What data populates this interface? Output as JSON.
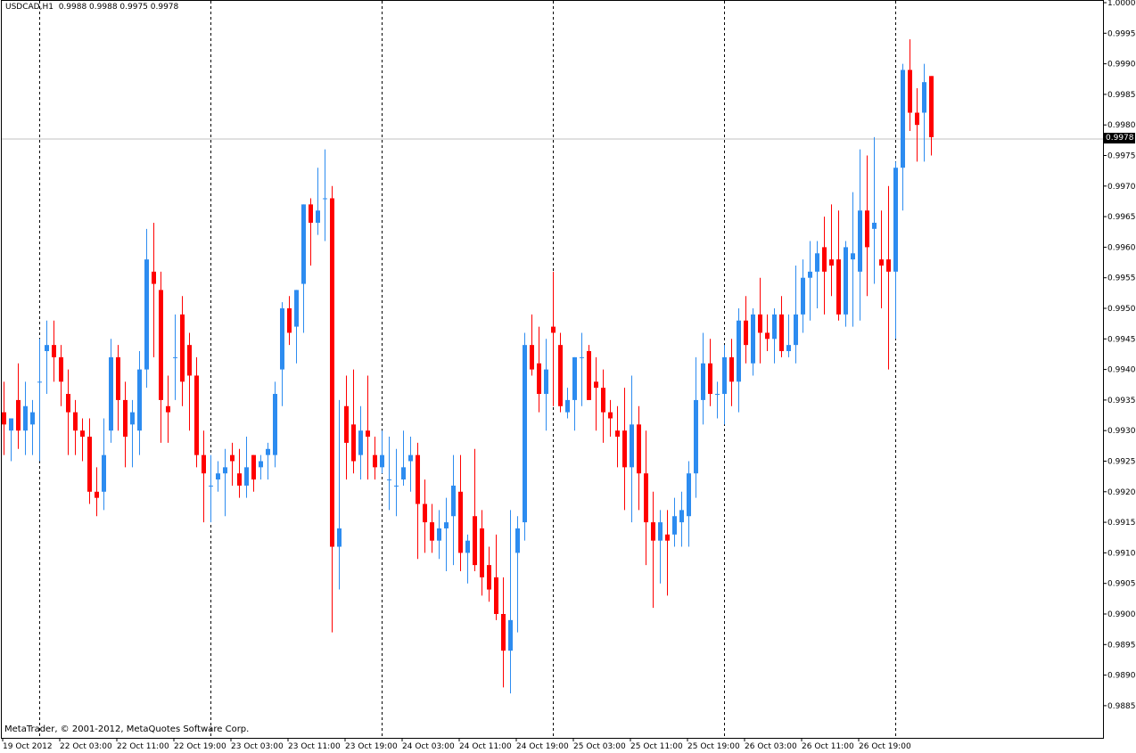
{
  "header": {
    "symbol": "USDCAD,H1",
    "ohlc": "0.9988 0.9988 0.9975 0.9978"
  },
  "footer": {
    "copyright": "MetaTrader, © 2001-2012, MetaQuotes Software Corp."
  },
  "current_price_label": "0.9978",
  "colors": {
    "bull": "#2d8cf0",
    "bear": "#ff0000",
    "background": "#ffffff",
    "axis": "#000000",
    "separator": "#000000",
    "price_line": "#c0c0c0"
  },
  "chart_data": {
    "type": "candlestick",
    "title": "USDCAD,H1",
    "ylim": [
      0.9882,
      1.0
    ],
    "y_ticks": [
      "1.0000",
      "0.9995",
      "0.9990",
      "0.9985",
      "0.9980",
      "0.9975",
      "0.9970",
      "0.9965",
      "0.9960",
      "0.9955",
      "0.9950",
      "0.9945",
      "0.9940",
      "0.9935",
      "0.9930",
      "0.9925",
      "0.9920",
      "0.9915",
      "0.9910",
      "0.9905",
      "0.9900",
      "0.9895",
      "0.9890",
      "0.9885"
    ],
    "x_tick_labels": [
      "19 Oct 2012",
      "22 Oct 03:00",
      "22 Oct 11:00",
      "22 Oct 19:00",
      "23 Oct 03:00",
      "23 Oct 11:00",
      "23 Oct 19:00",
      "24 Oct 03:00",
      "24 Oct 11:00",
      "24 Oct 19:00",
      "25 Oct 03:00",
      "25 Oct 11:00",
      "25 Oct 19:00",
      "26 Oct 03:00",
      "26 Oct 11:00",
      "26 Oct 19:00"
    ],
    "day_separators": [
      "22 Oct",
      "23 Oct",
      "24 Oct",
      "25 Oct",
      "26 Oct",
      "27 Oct"
    ],
    "current_price": 0.9978,
    "candles": [
      [
        0.9933,
        0.9938,
        0.9926,
        0.9931
      ],
      [
        0.993,
        0.9932,
        0.9925,
        0.9932
      ],
      [
        0.9935,
        0.9941,
        0.9927,
        0.993
      ],
      [
        0.993,
        0.9938,
        0.9926,
        0.9934
      ],
      [
        0.9931,
        0.9935,
        0.9926,
        0.9933
      ],
      [
        0.9938,
        0.9945,
        0.9925,
        0.9938
      ],
      [
        0.9943,
        0.9948,
        0.9936,
        0.9944
      ],
      [
        0.9944,
        0.9948,
        0.9938,
        0.9942
      ],
      [
        0.9942,
        0.9944,
        0.9934,
        0.9938
      ],
      [
        0.9936,
        0.994,
        0.9926,
        0.9933
      ],
      [
        0.9933,
        0.9935,
        0.9926,
        0.993
      ],
      [
        0.993,
        0.9932,
        0.9925,
        0.9929
      ],
      [
        0.9929,
        0.9932,
        0.9918,
        0.992
      ],
      [
        0.992,
        0.9924,
        0.9916,
        0.9919
      ],
      [
        0.992,
        0.9932,
        0.9917,
        0.9926
      ],
      [
        0.993,
        0.9945,
        0.9928,
        0.9942
      ],
      [
        0.9942,
        0.9944,
        0.993,
        0.9935
      ],
      [
        0.9935,
        0.9938,
        0.9924,
        0.9929
      ],
      [
        0.9931,
        0.9935,
        0.9924,
        0.9933
      ],
      [
        0.993,
        0.9943,
        0.9926,
        0.994
      ],
      [
        0.994,
        0.9963,
        0.9937,
        0.9958
      ],
      [
        0.9956,
        0.9964,
        0.9942,
        0.9954
      ],
      [
        0.9953,
        0.9956,
        0.9928,
        0.9935
      ],
      [
        0.9934,
        0.9939,
        0.9928,
        0.9933
      ],
      [
        0.9942,
        0.9949,
        0.9935,
        0.9942
      ],
      [
        0.9949,
        0.9952,
        0.9934,
        0.9938
      ],
      [
        0.9944,
        0.9946,
        0.993,
        0.9939
      ],
      [
        0.9939,
        0.9942,
        0.9924,
        0.9926
      ],
      [
        0.9926,
        0.993,
        0.9915,
        0.9923
      ],
      [
        0.9921,
        0.9926,
        0.9915,
        0.9921
      ],
      [
        0.9922,
        0.9925,
        0.992,
        0.9923
      ],
      [
        0.9923,
        0.9927,
        0.9916,
        0.9924
      ],
      [
        0.9926,
        0.9928,
        0.9921,
        0.9925
      ],
      [
        0.9923,
        0.9927,
        0.9919,
        0.9921
      ],
      [
        0.9921,
        0.9929,
        0.9919,
        0.9924
      ],
      [
        0.9926,
        0.9926,
        0.992,
        0.9922
      ],
      [
        0.9924,
        0.9926,
        0.9922,
        0.9925
      ],
      [
        0.9926,
        0.9928,
        0.9922,
        0.9927
      ],
      [
        0.9926,
        0.9938,
        0.9924,
        0.9936
      ],
      [
        0.994,
        0.9951,
        0.9934,
        0.995
      ],
      [
        0.995,
        0.9952,
        0.9944,
        0.9946
      ],
      [
        0.9947,
        0.9953,
        0.9941,
        0.9953
      ],
      [
        0.9954,
        0.9967,
        0.9946,
        0.9967
      ],
      [
        0.9967,
        0.9968,
        0.9957,
        0.9964
      ],
      [
        0.9964,
        0.9973,
        0.9962,
        0.9966
      ],
      [
        0.9968,
        0.9976,
        0.9961,
        0.9968
      ],
      [
        0.9968,
        0.997,
        0.9897,
        0.9911
      ],
      [
        0.9911,
        0.9935,
        0.9904,
        0.9914
      ],
      [
        0.9934,
        0.9939,
        0.9922,
        0.9928
      ],
      [
        0.9931,
        0.994,
        0.9923,
        0.9925
      ],
      [
        0.9926,
        0.9934,
        0.9922,
        0.993
      ],
      [
        0.993,
        0.9939,
        0.9922,
        0.9929
      ],
      [
        0.9926,
        0.9929,
        0.9922,
        0.9924
      ],
      [
        0.9924,
        0.993,
        0.9923,
        0.9926
      ],
      [
        0.9922,
        0.9929,
        0.9917,
        0.9922
      ],
      [
        0.9921,
        0.9927,
        0.9916,
        0.9921
      ],
      [
        0.9922,
        0.993,
        0.9921,
        0.9924
      ],
      [
        0.9925,
        0.9929,
        0.992,
        0.9926
      ],
      [
        0.9926,
        0.9928,
        0.9909,
        0.9918
      ],
      [
        0.9918,
        0.9922,
        0.991,
        0.9915
      ],
      [
        0.9915,
        0.9918,
        0.991,
        0.9912
      ],
      [
        0.9912,
        0.9917,
        0.9909,
        0.9914
      ],
      [
        0.9914,
        0.9919,
        0.9907,
        0.9915
      ],
      [
        0.9916,
        0.9926,
        0.9908,
        0.9921
      ],
      [
        0.992,
        0.9926,
        0.9907,
        0.991
      ],
      [
        0.991,
        0.9913,
        0.9905,
        0.9912
      ],
      [
        0.9916,
        0.9927,
        0.9907,
        0.9908
      ],
      [
        0.9914,
        0.9917,
        0.9903,
        0.9906
      ],
      [
        0.9908,
        0.9911,
        0.9902,
        0.9904
      ],
      [
        0.9906,
        0.9913,
        0.9899,
        0.99
      ],
      [
        0.99,
        0.9906,
        0.9888,
        0.9894
      ],
      [
        0.9894,
        0.9917,
        0.9887,
        0.9899
      ],
      [
        0.991,
        0.9916,
        0.9897,
        0.9914
      ],
      [
        0.9915,
        0.9946,
        0.9912,
        0.9944
      ],
      [
        0.9944,
        0.9949,
        0.9939,
        0.994
      ],
      [
        0.9941,
        0.9947,
        0.9933,
        0.9936
      ],
      [
        0.9936,
        0.9945,
        0.993,
        0.994
      ],
      [
        0.9947,
        0.9956,
        0.9934,
        0.9946
      ],
      [
        0.9944,
        0.9946,
        0.9933,
        0.9934
      ],
      [
        0.9933,
        0.9937,
        0.9932,
        0.9935
      ],
      [
        0.9935,
        0.9942,
        0.993,
        0.9942
      ],
      [
        0.9942,
        0.9946,
        0.9934,
        0.9942
      ],
      [
        0.9943,
        0.9944,
        0.9935,
        0.9935
      ],
      [
        0.9938,
        0.9942,
        0.993,
        0.9937
      ],
      [
        0.9937,
        0.994,
        0.9928,
        0.9933
      ],
      [
        0.9933,
        0.9935,
        0.9929,
        0.9932
      ],
      [
        0.993,
        0.9934,
        0.9924,
        0.9929
      ],
      [
        0.993,
        0.9937,
        0.9917,
        0.9924
      ],
      [
        0.9924,
        0.9939,
        0.9915,
        0.9931
      ],
      [
        0.9931,
        0.9934,
        0.9917,
        0.9923
      ],
      [
        0.9923,
        0.993,
        0.9908,
        0.9915
      ],
      [
        0.9915,
        0.992,
        0.9901,
        0.9912
      ],
      [
        0.9912,
        0.9917,
        0.9905,
        0.9915
      ],
      [
        0.9913,
        0.9917,
        0.9903,
        0.9912
      ],
      [
        0.9913,
        0.9919,
        0.9911,
        0.9916
      ],
      [
        0.9915,
        0.992,
        0.9911,
        0.9917
      ],
      [
        0.9916,
        0.9925,
        0.9911,
        0.9923
      ],
      [
        0.9923,
        0.9942,
        0.9919,
        0.9935
      ],
      [
        0.9935,
        0.9946,
        0.9931,
        0.9941
      ],
      [
        0.9941,
        0.9945,
        0.9934,
        0.9936
      ],
      [
        0.9936,
        0.9938,
        0.9932,
        0.9936
      ],
      [
        0.9936,
        0.9944,
        0.9931,
        0.9942
      ],
      [
        0.9942,
        0.9945,
        0.9934,
        0.9938
      ],
      [
        0.9938,
        0.995,
        0.9933,
        0.9948
      ],
      [
        0.9948,
        0.9952,
        0.9941,
        0.9944
      ],
      [
        0.9941,
        0.995,
        0.9939,
        0.9949
      ],
      [
        0.9949,
        0.9955,
        0.9941,
        0.9946
      ],
      [
        0.9946,
        0.9949,
        0.9943,
        0.9945
      ],
      [
        0.9945,
        0.995,
        0.9941,
        0.9949
      ],
      [
        0.9949,
        0.9952,
        0.9942,
        0.9943
      ],
      [
        0.9943,
        0.9949,
        0.9942,
        0.9944
      ],
      [
        0.9944,
        0.9957,
        0.9941,
        0.9949
      ],
      [
        0.9949,
        0.9958,
        0.9946,
        0.9955
      ],
      [
        0.9955,
        0.9961,
        0.9948,
        0.9956
      ],
      [
        0.9956,
        0.9961,
        0.995,
        0.9959
      ],
      [
        0.996,
        0.9965,
        0.9949,
        0.9956
      ],
      [
        0.9958,
        0.9967,
        0.9952,
        0.9957
      ],
      [
        0.9958,
        0.9966,
        0.9948,
        0.9949
      ],
      [
        0.9949,
        0.9961,
        0.9947,
        0.996
      ],
      [
        0.9958,
        0.9969,
        0.9947,
        0.9959
      ],
      [
        0.9956,
        0.9976,
        0.9948,
        0.9966
      ],
      [
        0.9966,
        0.9975,
        0.9952,
        0.996
      ],
      [
        0.9963,
        0.9978,
        0.9954,
        0.9964
      ],
      [
        0.9958,
        0.9966,
        0.995,
        0.9957
      ],
      [
        0.9958,
        0.997,
        0.994,
        0.9956
      ],
      [
        0.9956,
        0.9974,
        0.9945,
        0.9973
      ],
      [
        0.9973,
        0.999,
        0.9966,
        0.9989
      ],
      [
        0.9989,
        0.9994,
        0.9979,
        0.9982
      ],
      [
        0.9982,
        0.9986,
        0.9974,
        0.998
      ],
      [
        0.9982,
        0.999,
        0.9974,
        0.9987
      ],
      [
        0.9988,
        0.9988,
        0.9975,
        0.9978
      ]
    ]
  }
}
